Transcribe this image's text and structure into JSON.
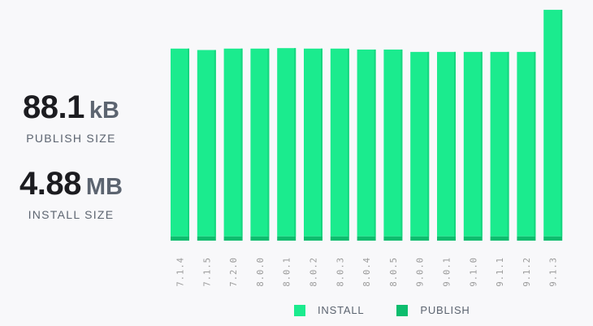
{
  "stats": {
    "publish": {
      "value": "88.1",
      "unit": "kB",
      "label": "PUBLISH SIZE"
    },
    "install": {
      "value": "4.88",
      "unit": "MB",
      "label": "INSTALL SIZE"
    }
  },
  "legend": {
    "install_label": "INSTALL",
    "publish_label": "PUBLISH"
  },
  "colors": {
    "install": "#1beb8e",
    "publish": "#0dbd6e",
    "install_edge": "#16d67f"
  },
  "chart_data": {
    "type": "bar",
    "stacked": true,
    "categories": [
      "7.1.4",
      "7.1.5",
      "7.2.0",
      "8.0.0",
      "8.0.1",
      "8.0.2",
      "8.0.3",
      "8.0.4",
      "8.0.5",
      "9.0.0",
      "9.0.1",
      "9.1.0",
      "9.1.1",
      "9.1.2",
      "9.1.3"
    ],
    "series": [
      {
        "name": "INSTALL",
        "values": [
          3.97,
          3.94,
          3.97,
          3.97,
          3.98,
          3.97,
          3.97,
          3.95,
          3.95,
          3.9,
          3.9,
          3.9,
          3.9,
          3.9,
          4.79
        ]
      },
      {
        "name": "PUBLISH",
        "values": [
          0.09,
          0.09,
          0.09,
          0.09,
          0.09,
          0.09,
          0.09,
          0.09,
          0.09,
          0.09,
          0.09,
          0.09,
          0.09,
          0.09,
          0.09
        ]
      }
    ],
    "units": "MB",
    "ylim": [
      0,
      4.95
    ],
    "grid": false,
    "legend_position": "bottom"
  }
}
